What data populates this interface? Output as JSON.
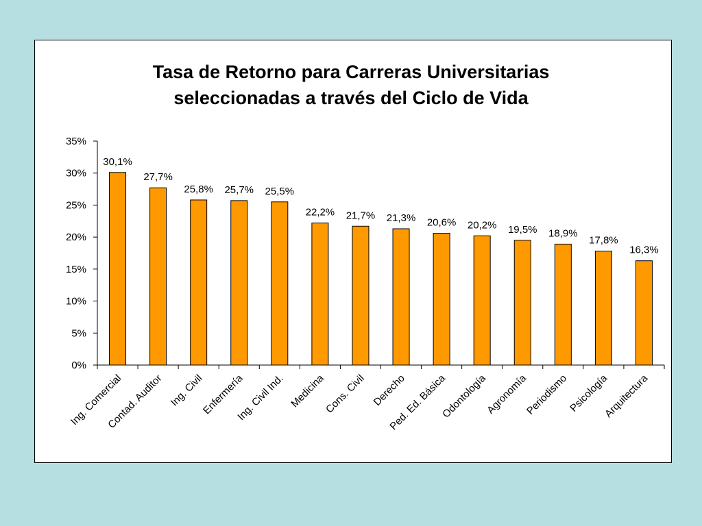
{
  "chart_data": {
    "type": "bar",
    "title_line1": "Tasa de Retorno para Carreras Universitarias",
    "title_line2": "seleccionadas a través del Ciclo de Vida",
    "categories": [
      "Ing. Comercial",
      "Contad. Auditor",
      "Ing. Civil",
      "Enfermería",
      "Ing. Civil Ind.",
      "Medicina",
      "Cons. Civil",
      "Derecho",
      "Ped. Ed. Básica",
      "Odontología",
      "Agronomía",
      "Periodismo",
      "Psicología",
      "Arquitectura"
    ],
    "values": [
      30.1,
      27.7,
      25.8,
      25.7,
      25.5,
      22.2,
      21.7,
      21.3,
      20.6,
      20.2,
      19.5,
      18.9,
      17.8,
      16.3
    ],
    "data_labels": [
      "30,1%",
      "27,7%",
      "25,8%",
      "25,7%",
      "25,5%",
      "22,2%",
      "21,7%",
      "21,3%",
      "20,6%",
      "20,2%",
      "19,5%",
      "18,9%",
      "17,8%",
      "16,3%"
    ],
    "ylim": [
      0,
      35
    ],
    "yticks": [
      0,
      5,
      10,
      15,
      20,
      25,
      30,
      35
    ],
    "ytick_labels": [
      "0%",
      "5%",
      "10%",
      "15%",
      "20%",
      "25%",
      "30%",
      "35%"
    ],
    "xlabel": "",
    "ylabel": "",
    "grid": false,
    "legend": "none",
    "bar_color": "#ff9900"
  },
  "colors": {
    "background": "#b6dfe2",
    "panel": "#ffffff",
    "bar": "#ff9900"
  }
}
